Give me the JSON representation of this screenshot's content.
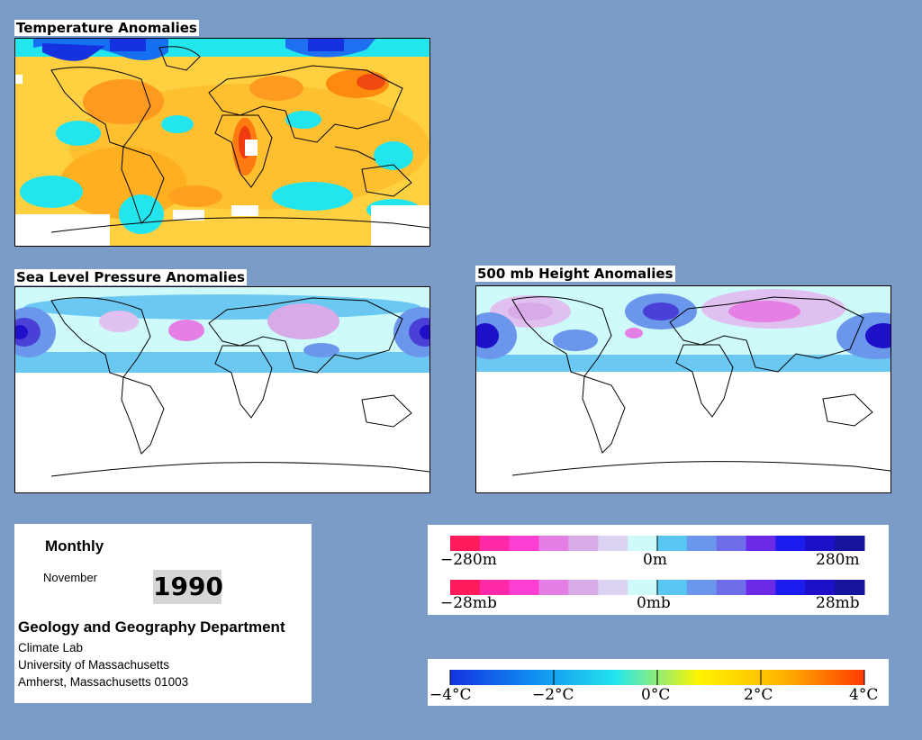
{
  "panels": {
    "temperature": {
      "title": "Temperature Anomalies"
    },
    "slp": {
      "title": "Sea Level Pressure Anomalies"
    },
    "height": {
      "title": "500 mb Height Anomalies"
    }
  },
  "info": {
    "period": "Monthly",
    "month": "November",
    "year": "1990",
    "department": "Geology and Geography Department",
    "lab": "Climate Lab",
    "university": "University of Massachusetts",
    "address": "Amherst, Massachusetts 01003"
  },
  "legends": {
    "height": {
      "min": "−280m",
      "mid": "0m",
      "max": "280m"
    },
    "pressure": {
      "min": "−28mb",
      "mid": "0mb",
      "max": "28mb"
    },
    "temperature": {
      "labels": [
        "−4°C",
        "−2°C",
        "0°C",
        "2°C",
        "4°C"
      ]
    }
  },
  "colors": {
    "background": "#7b9cc6",
    "negative_anomaly_ramp": [
      "#ff1a5c",
      "#ff2aa8",
      "#ff3fd3",
      "#e57fe5",
      "#d8aae8",
      "#dcd2f2"
    ],
    "positive_anomaly_ramp": [
      "#58c8f2",
      "#6a96ec",
      "#6f6ce8",
      "#6a2ae8",
      "#1c1cee",
      "#1e10c8",
      "#16149a"
    ],
    "temperature_ramp": [
      "#1432e0",
      "#0f8ef0",
      "#23e5ee",
      "#fff500",
      "#ffb400",
      "#ff3a00"
    ]
  }
}
